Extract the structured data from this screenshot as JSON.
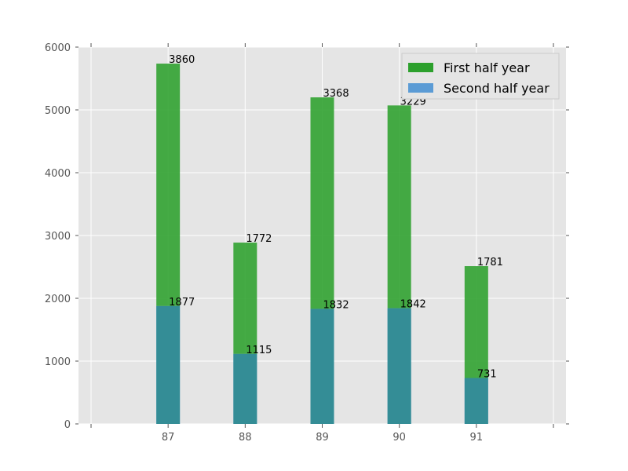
{
  "chart_data": {
    "type": "bar",
    "stacked": true,
    "categories": [
      "87",
      "88",
      "89",
      "90",
      "91"
    ],
    "series": [
      {
        "name": "First half year",
        "values": [
          3860,
          1772,
          3368,
          3229,
          1781
        ],
        "color": "#2ca02c"
      },
      {
        "name": "Second half year",
        "values": [
          1877,
          1115,
          1832,
          1842,
          731
        ],
        "color": "#5b9bd5"
      }
    ],
    "ylim": [
      0,
      6000
    ],
    "yticks": [
      0,
      1000,
      2000,
      3000,
      4000,
      5000,
      6000
    ],
    "grid": true,
    "legend_position": "top-right",
    "background_color": "#e5e5e5"
  }
}
